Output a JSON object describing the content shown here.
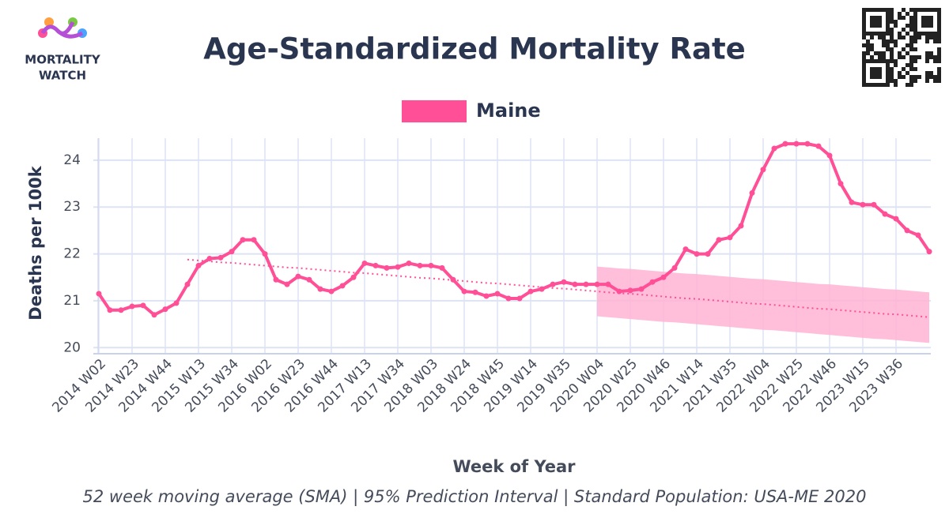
{
  "logo": {
    "line1": "MORTALITY",
    "line2": "WATCH"
  },
  "chart_data": {
    "type": "line",
    "title": "Age-Standardized Mortality Rate",
    "x_label": "Week of Year",
    "y_label": "Deaths per 100k",
    "footnote": "52 week moving average (SMA) | 95% Prediction Interval | Standard Population: USA-ME 2020",
    "categories": [
      "2014 W02",
      null,
      null,
      "2014 W23",
      null,
      null,
      "2014 W44",
      null,
      null,
      "2015 W13",
      null,
      null,
      "2015 W34",
      null,
      null,
      "2016 W02",
      null,
      null,
      "2016 W23",
      null,
      null,
      "2016 W44",
      null,
      null,
      "2017 W13",
      null,
      null,
      "2017 W34",
      null,
      null,
      "2018 W03",
      null,
      null,
      "2018 W24",
      null,
      null,
      "2018 W45",
      null,
      null,
      "2019 W14",
      null,
      null,
      "2019 W35",
      null,
      null,
      "2020 W04",
      null,
      null,
      "2020 W25",
      null,
      null,
      "2020 W46",
      null,
      null,
      "2021 W14",
      null,
      null,
      "2021 W35",
      null,
      null,
      "2022 W04",
      null,
      null,
      "2022 W25",
      null,
      null,
      "2022 W46",
      null,
      null,
      "2023 W15",
      null,
      null,
      "2023 W36",
      null,
      null,
      null
    ],
    "series": [
      {
        "name": "Maine",
        "color": "#ff4f96",
        "values": [
          21.15,
          20.8,
          20.8,
          20.88,
          20.9,
          20.7,
          20.82,
          20.95,
          21.35,
          21.75,
          21.9,
          21.92,
          22.05,
          22.3,
          22.3,
          22.0,
          21.45,
          21.35,
          21.52,
          21.45,
          21.25,
          21.2,
          21.32,
          21.5,
          21.8,
          21.75,
          21.7,
          21.72,
          21.8,
          21.75,
          21.75,
          21.7,
          21.45,
          21.2,
          21.18,
          21.1,
          21.15,
          21.05,
          21.05,
          21.2,
          21.25,
          21.35,
          21.4,
          21.35,
          21.35,
          21.35,
          21.35,
          21.2,
          21.22,
          21.25,
          21.4,
          21.5,
          21.7,
          22.1,
          22.0,
          22.0,
          22.3,
          22.35,
          22.6,
          23.3,
          23.8,
          24.25,
          24.35,
          24.35,
          24.35,
          24.3,
          24.1,
          23.5,
          23.1,
          23.05,
          23.05,
          22.85,
          22.75,
          22.5,
          22.4,
          22.05
        ]
      }
    ],
    "trend": {
      "color": "#ff4f96",
      "values": [
        null,
        null,
        null,
        null,
        null,
        null,
        null,
        null,
        21.88,
        21.86,
        21.84,
        21.82,
        21.81,
        21.79,
        21.77,
        21.75,
        21.73,
        21.71,
        21.7,
        21.68,
        21.66,
        21.64,
        21.62,
        21.6,
        21.59,
        21.57,
        21.55,
        21.53,
        21.51,
        21.49,
        21.48,
        21.46,
        21.44,
        21.42,
        21.4,
        21.38,
        21.37,
        21.35,
        21.33,
        21.31,
        21.29,
        21.27,
        21.26,
        21.24,
        21.22,
        21.2,
        21.18,
        21.16,
        21.15,
        21.13,
        21.11,
        21.09,
        21.07,
        21.05,
        21.04,
        21.02,
        21.0,
        20.98,
        20.96,
        20.94,
        20.93,
        20.91,
        20.89,
        20.87,
        20.85,
        20.83,
        20.82,
        20.8,
        20.78,
        20.76,
        20.74,
        20.72,
        20.71,
        20.69,
        20.67,
        20.65
      ]
    },
    "interval": {
      "color": "#ffb3d2",
      "upper": [
        null,
        null,
        null,
        null,
        null,
        null,
        null,
        null,
        null,
        null,
        null,
        null,
        null,
        null,
        null,
        null,
        null,
        null,
        null,
        null,
        null,
        null,
        null,
        null,
        null,
        null,
        null,
        null,
        null,
        null,
        null,
        null,
        null,
        null,
        null,
        null,
        null,
        null,
        null,
        null,
        null,
        null,
        null,
        null,
        null,
        21.73,
        21.71,
        21.69,
        21.68,
        21.66,
        21.64,
        21.62,
        21.6,
        21.58,
        21.57,
        21.55,
        21.53,
        21.51,
        21.49,
        21.47,
        21.46,
        21.44,
        21.42,
        21.4,
        21.38,
        21.36,
        21.35,
        21.33,
        21.31,
        21.29,
        21.27,
        21.25,
        21.24,
        21.22,
        21.2,
        21.18
      ],
      "lower": [
        null,
        null,
        null,
        null,
        null,
        null,
        null,
        null,
        null,
        null,
        null,
        null,
        null,
        null,
        null,
        null,
        null,
        null,
        null,
        null,
        null,
        null,
        null,
        null,
        null,
        null,
        null,
        null,
        null,
        null,
        null,
        null,
        null,
        null,
        null,
        null,
        null,
        null,
        null,
        null,
        null,
        null,
        null,
        null,
        null,
        20.67,
        20.65,
        20.63,
        20.61,
        20.59,
        20.57,
        20.55,
        20.54,
        20.52,
        20.5,
        20.48,
        20.46,
        20.44,
        20.42,
        20.4,
        20.38,
        20.37,
        20.35,
        20.33,
        20.31,
        20.29,
        20.27,
        20.25,
        20.23,
        20.21,
        20.19,
        20.18,
        20.16,
        20.14,
        20.12,
        20.1
      ]
    },
    "ylim": [
      19.87,
      24.47
    ],
    "yticks": [
      20,
      21,
      22,
      23,
      24
    ],
    "grid": true
  }
}
